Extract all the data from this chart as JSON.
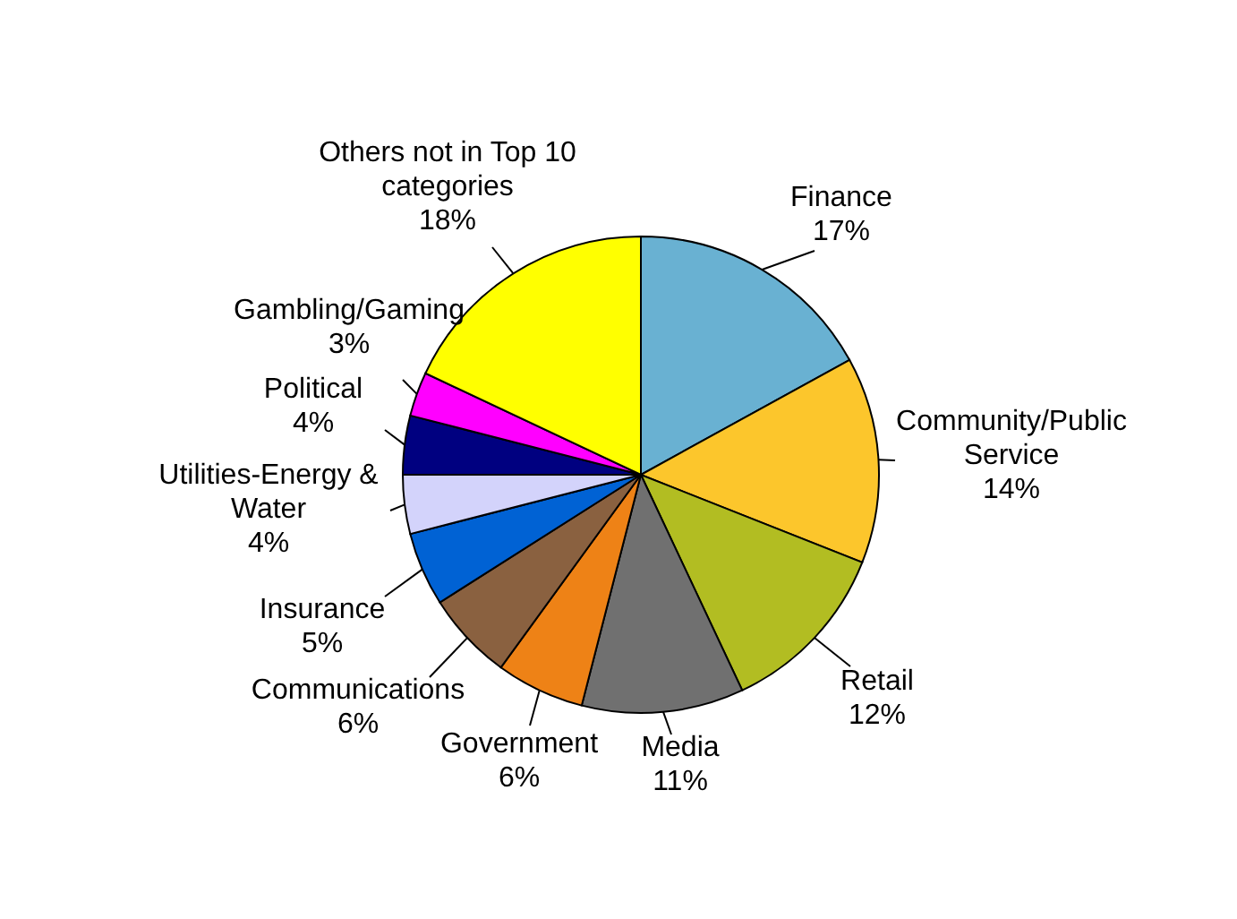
{
  "chart_data": {
    "type": "pie",
    "categories": [
      "Finance",
      "Community/Public Service",
      "Retail",
      "Media",
      "Government",
      "Communications",
      "Insurance",
      "Utilities-Energy & Water",
      "Political",
      "Gambling/Gaming",
      "Others not in Top 10 categories"
    ],
    "values": [
      17,
      14,
      12,
      11,
      6,
      6,
      5,
      4,
      4,
      3,
      18
    ],
    "value_labels": [
      "17%",
      "14%",
      "12%",
      "11%",
      "6%",
      "6%",
      "5%",
      "4%",
      "4%",
      "3%",
      "18%"
    ],
    "colors": [
      "#69b1d2",
      "#fcc62c",
      "#b2bd22",
      "#707070",
      "#ee8216",
      "#8a6140",
      "#0062d4",
      "#d3d3fb",
      "#000080",
      "#ff00ff",
      "#ffff00"
    ]
  }
}
